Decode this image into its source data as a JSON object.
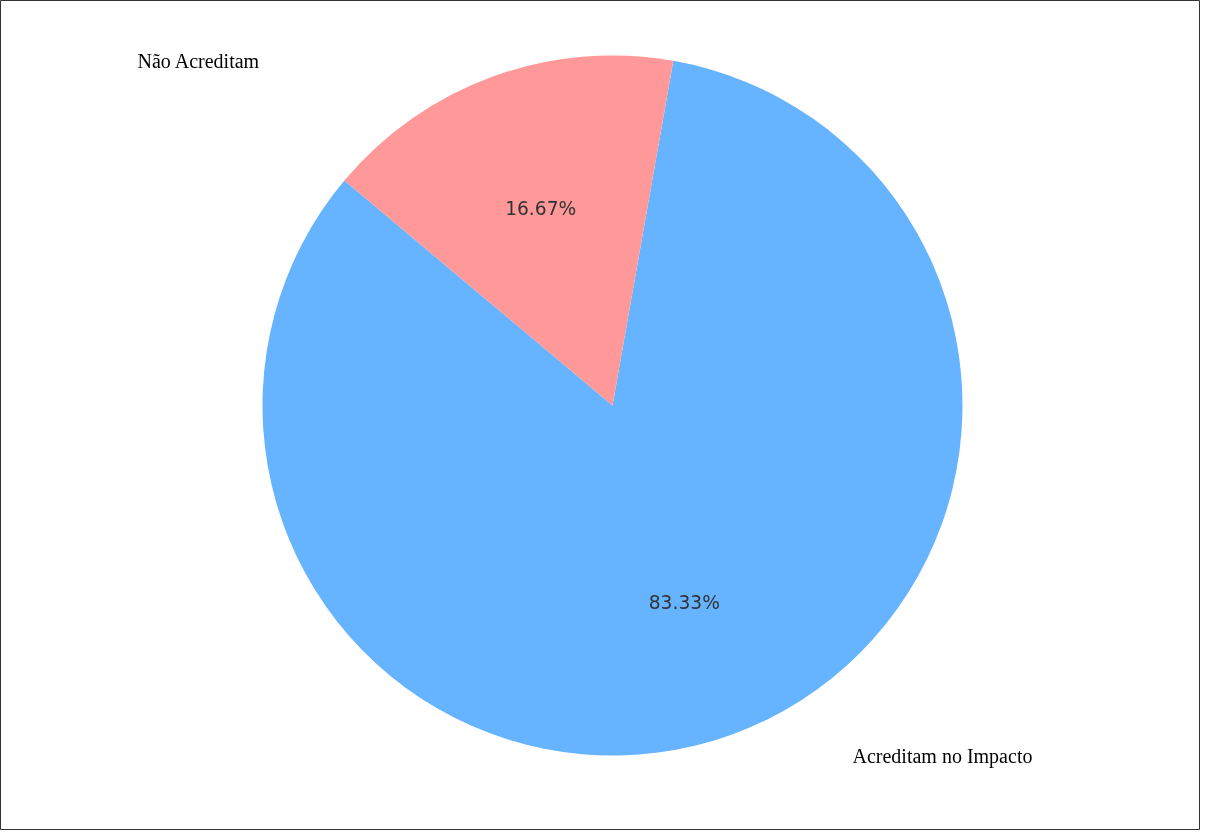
{
  "chart_data": {
    "type": "pie",
    "categories": [
      "Acreditam no Impacto",
      "Não Acreditam"
    ],
    "values": [
      83.33,
      16.67
    ],
    "colors": [
      "#66b3ff",
      "#ff9999"
    ],
    "value_labels": [
      "83.33%",
      "16.67%"
    ]
  }
}
